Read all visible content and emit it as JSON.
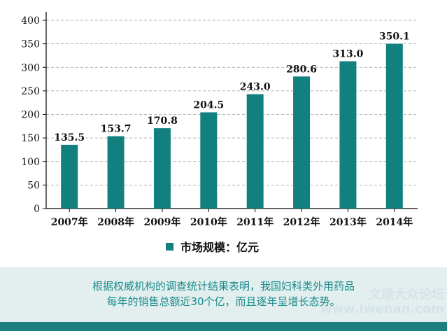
{
  "chart_data": {
    "type": "bar",
    "categories": [
      "2007年",
      "2008年",
      "2009年",
      "2010年",
      "2011年",
      "2012年",
      "2013年",
      "2014年"
    ],
    "values": [
      135.5,
      153.7,
      170.8,
      204.5,
      243.0,
      280.6,
      313.0,
      350.1
    ],
    "value_labels": [
      "135.5",
      "153.7",
      "170.8",
      "204.5",
      "243.0",
      "280.6",
      "313.0",
      "350.1"
    ],
    "y_ticks": [
      "0",
      "50",
      "100",
      "150",
      "200",
      "250",
      "300",
      "350",
      "400"
    ],
    "ylim": [
      0,
      400
    ],
    "grid": true,
    "legend": "市场规模：亿元",
    "legend_placement": "bottom-center",
    "bar_color": "#12807f"
  },
  "caption": {
    "line1": "根据权威机构的调查统计结果表明，我国妇科类外用药品",
    "line2": "每年的销售总额近30个亿，而且逐年呈增长态势。"
  },
  "watermark": {
    "line1": "文缘大众论坛",
    "line2": "www.iwenan.com"
  }
}
